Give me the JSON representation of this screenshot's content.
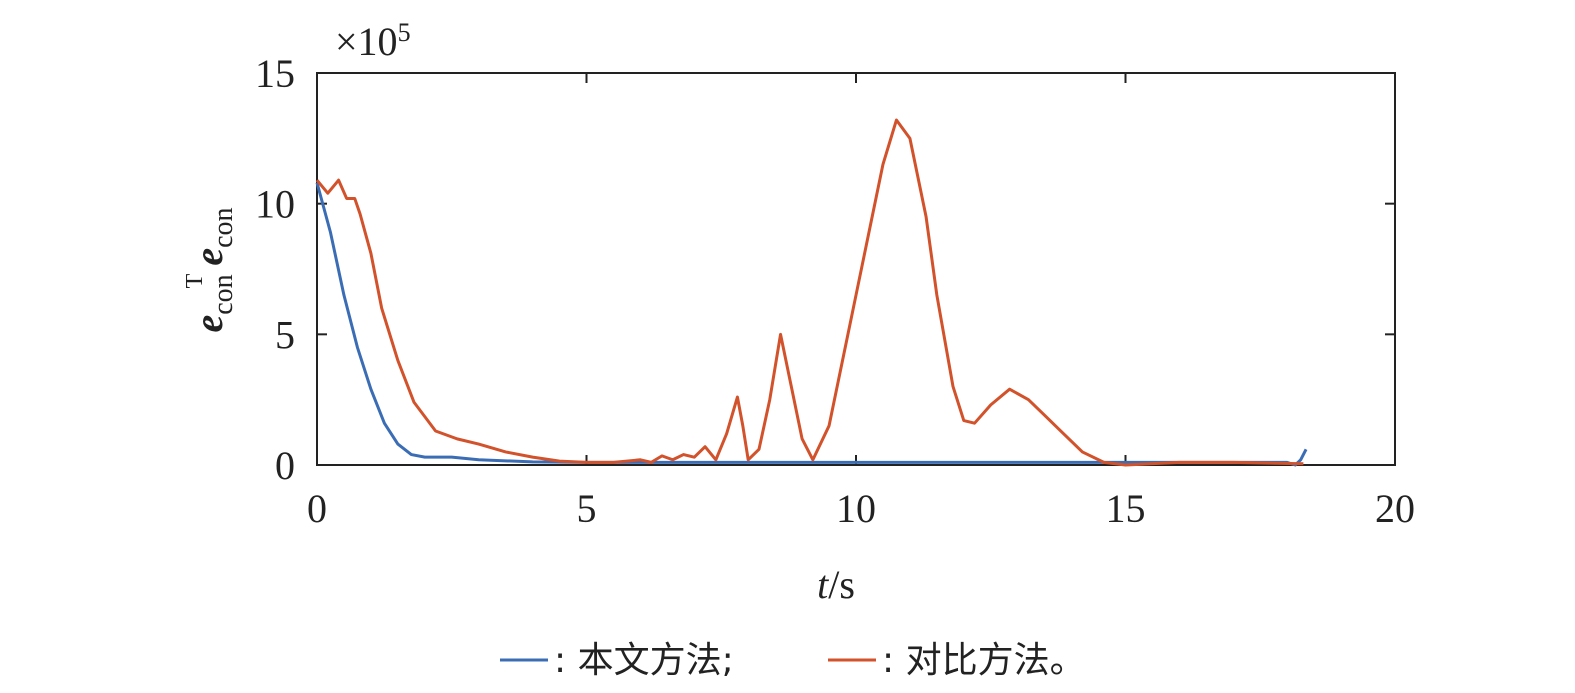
{
  "chart_data": {
    "type": "line",
    "xlabel": {
      "italic": "t",
      "rest": "/s"
    },
    "ylabel": [
      "e",
      "con",
      "T",
      "e",
      "con"
    ],
    "y_multiplier": {
      "base": "×10",
      "exponent": "5"
    },
    "xlim": [
      0,
      20
    ],
    "xticks": [
      0,
      5,
      10,
      15,
      20
    ],
    "ylim": [
      0,
      15
    ],
    "yticks": [
      0,
      5,
      10,
      15
    ],
    "grid": false,
    "legend": "bottom",
    "series": [
      {
        "name": ": 本文方法;",
        "color": "#3b6db5",
        "x": [
          0,
          0.25,
          0.5,
          0.75,
          1,
          1.25,
          1.5,
          1.75,
          2,
          2.5,
          3,
          4,
          5,
          8,
          12,
          16,
          18,
          18.15,
          18.25,
          18.35
        ],
        "values": [
          10.8,
          8.9,
          6.5,
          4.5,
          2.9,
          1.6,
          0.8,
          0.4,
          0.3,
          0.3,
          0.2,
          0.12,
          0.1,
          0.1,
          0.1,
          0.1,
          0.1,
          0.0,
          0.2,
          0.6
        ]
      },
      {
        "name": ": 对比方法。",
        "color": "#d2522b",
        "x": [
          0,
          0.2,
          0.4,
          0.55,
          0.7,
          0.8,
          1,
          1.2,
          1.5,
          1.8,
          2.2,
          2.6,
          3,
          3.5,
          4,
          4.5,
          5,
          5.5,
          6,
          6.2,
          6.4,
          6.6,
          6.8,
          7,
          7.2,
          7.4,
          7.6,
          7.8,
          7.9,
          8,
          8.2,
          8.4,
          8.6,
          8.8,
          9,
          9.2,
          9.5,
          9.8,
          10,
          10.3,
          10.5,
          10.75,
          11,
          11.3,
          11.5,
          11.8,
          12,
          12.2,
          12.5,
          12.85,
          13.2,
          13.5,
          13.8,
          14.2,
          14.6,
          15,
          16,
          17,
          18.3
        ],
        "values": [
          10.9,
          10.4,
          10.9,
          10.2,
          10.2,
          9.6,
          8.1,
          6.0,
          4.0,
          2.4,
          1.3,
          1.0,
          0.8,
          0.5,
          0.3,
          0.15,
          0.1,
          0.1,
          0.2,
          0.1,
          0.35,
          0.2,
          0.4,
          0.3,
          0.7,
          0.2,
          1.2,
          2.6,
          1.5,
          0.2,
          0.6,
          2.5,
          5.0,
          3.0,
          1.0,
          0.2,
          1.5,
          4.5,
          6.5,
          9.5,
          11.5,
          13.2,
          12.5,
          9.5,
          6.5,
          3.0,
          1.7,
          1.6,
          2.3,
          2.9,
          2.5,
          1.9,
          1.3,
          0.5,
          0.1,
          0.0,
          0.1,
          0.1,
          0.05
        ]
      }
    ]
  }
}
